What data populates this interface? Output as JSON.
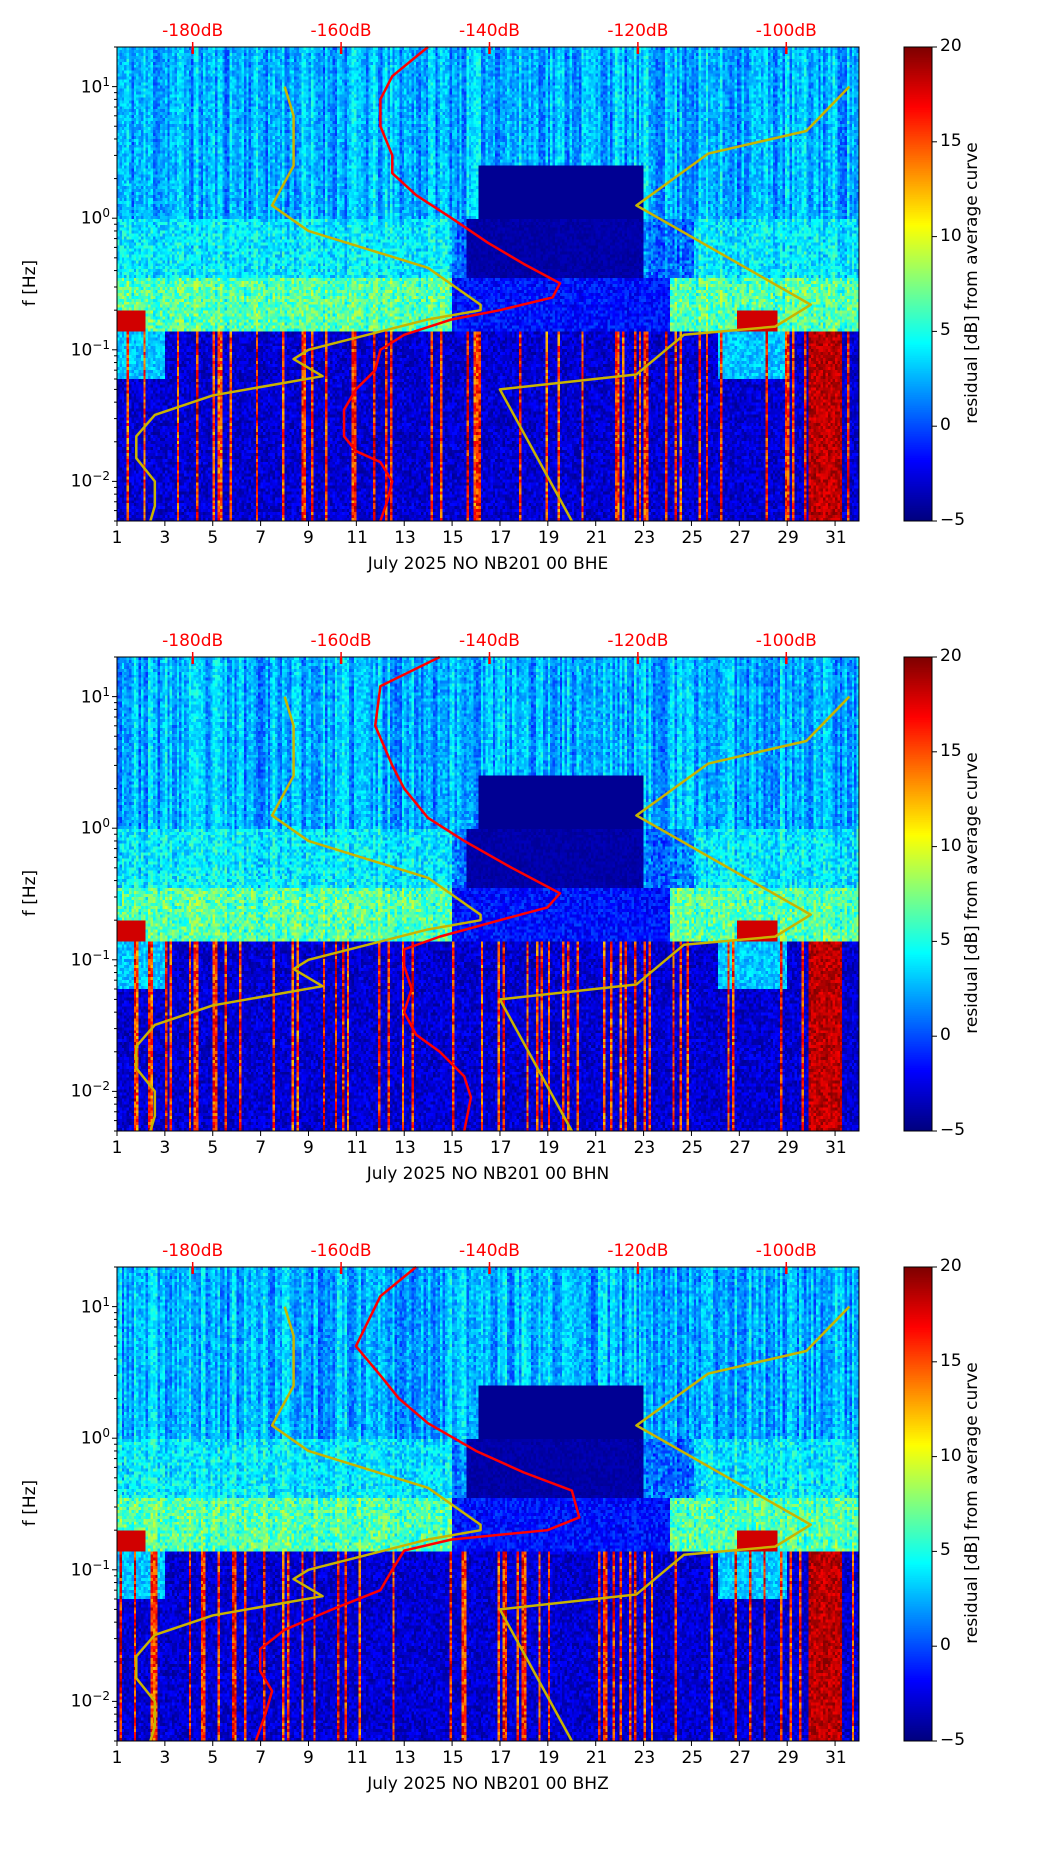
{
  "chart_data": [
    {
      "type": "heatmap",
      "title": "",
      "xlabel": "July 2025 NO NB201 00 BHE",
      "ylabel": "f [Hz]",
      "colorbar_label": "residual [dB] from average curve",
      "xlim": [
        1,
        32
      ],
      "ylim": [
        0.005,
        20
      ],
      "yscale": "log",
      "xticks": [
        "1",
        "3",
        "5",
        "7",
        "9",
        "11",
        "13",
        "15",
        "17",
        "19",
        "21",
        "23",
        "25",
        "27",
        "29",
        "31"
      ],
      "yticks": [
        {
          "v": 10,
          "base": "10",
          "exp": "1"
        },
        {
          "v": 1,
          "base": "10",
          "exp": "0"
        },
        {
          "v": 0.1,
          "base": "10",
          "exp": "−1"
        },
        {
          "v": 0.01,
          "base": "10",
          "exp": "−2"
        }
      ],
      "top_axis": {
        "xlim": [
          -190.2,
          -90.2
        ],
        "ticks": [
          "-180dB",
          "-160dB",
          "-140dB",
          "-120dB",
          "-100dB"
        ],
        "tick_values": [
          -180,
          -160,
          -140,
          -120,
          -100
        ],
        "color": "#ff0000"
      },
      "colorbar": {
        "range": [
          -5,
          20
        ],
        "ticks": [
          "20",
          "15",
          "10",
          "5",
          "0",
          "−5"
        ],
        "tick_values": [
          20,
          15,
          10,
          5,
          0,
          -5
        ],
        "colormap": "jet"
      },
      "seed": 11,
      "red_curve": {
        "color": "#ff0000",
        "points_db_f": [
          [
            -148.3,
            20
          ],
          [
            -153.1,
            12
          ],
          [
            -154.7,
            8
          ],
          [
            -154.7,
            5
          ],
          [
            -153.1,
            3
          ],
          [
            -153.1,
            2.2
          ],
          [
            -149.9,
            1.5
          ],
          [
            -145.1,
            1
          ],
          [
            -140.2,
            0.65
          ],
          [
            -135.4,
            0.45
          ],
          [
            -130.5,
            0.32
          ],
          [
            -131.5,
            0.25
          ],
          [
            -138.6,
            0.2
          ],
          [
            -145.1,
            0.17
          ],
          [
            -151.5,
            0.13
          ],
          [
            -154.7,
            0.1
          ],
          [
            -155.4,
            0.07
          ],
          [
            -158.0,
            0.05
          ],
          [
            -159.6,
            0.035
          ],
          [
            -159.6,
            0.022
          ],
          [
            -158.0,
            0.017
          ],
          [
            -154.7,
            0.014
          ],
          [
            -153.1,
            0.01
          ],
          [
            -153.8,
            0.007
          ],
          [
            -154.7,
            0.005
          ]
        ]
      },
      "noise_models": {
        "color": "#c8b400",
        "low": [
          [
            -167.6,
            10
          ],
          [
            -166.4,
            6
          ],
          [
            -166.4,
            2.5
          ],
          [
            -169.3,
            1.25
          ],
          [
            -164.4,
            0.8
          ],
          [
            -148.3,
            0.42
          ],
          [
            -141.2,
            0.22
          ],
          [
            -141.2,
            0.2
          ],
          [
            -148.3,
            0.17
          ],
          [
            -164.4,
            0.1
          ],
          [
            -166.4,
            0.085
          ],
          [
            -162.5,
            0.063
          ],
          [
            -177.3,
            0.045
          ],
          [
            -185.1,
            0.032
          ],
          [
            -187.6,
            0.022
          ],
          [
            -187.6,
            0.015
          ],
          [
            -185.1,
            0.01
          ],
          [
            -185.1,
            0.0065
          ],
          [
            -185.7,
            0.005
          ]
        ],
        "high": [
          [
            -91.5,
            10
          ],
          [
            -97.3,
            4.6
          ],
          [
            -110.5,
            3.1
          ],
          [
            -120.2,
            1.25
          ],
          [
            -96.7,
            0.22
          ],
          [
            -101.5,
            0.15
          ],
          [
            -113.8,
            0.13
          ],
          [
            -120.2,
            0.065
          ],
          [
            -138.6,
            0.05
          ],
          [
            -128.9,
            0.005
          ]
        ]
      }
    },
    {
      "type": "heatmap",
      "title": "",
      "xlabel": "July 2025 NO NB201 00 BHN",
      "ylabel": "f [Hz]",
      "colorbar_label": "residual [dB] from average curve",
      "xlim": [
        1,
        32
      ],
      "ylim": [
        0.005,
        20
      ],
      "yscale": "log",
      "xticks": [
        "1",
        "3",
        "5",
        "7",
        "9",
        "11",
        "13",
        "15",
        "17",
        "19",
        "21",
        "23",
        "25",
        "27",
        "29",
        "31"
      ],
      "yticks": [
        {
          "v": 10,
          "base": "10",
          "exp": "1"
        },
        {
          "v": 1,
          "base": "10",
          "exp": "0"
        },
        {
          "v": 0.1,
          "base": "10",
          "exp": "−1"
        },
        {
          "v": 0.01,
          "base": "10",
          "exp": "−2"
        }
      ],
      "top_axis": {
        "xlim": [
          -190.2,
          -90.2
        ],
        "ticks": [
          "-180dB",
          "-160dB",
          "-140dB",
          "-120dB",
          "-100dB"
        ],
        "tick_values": [
          -180,
          -160,
          -140,
          -120,
          -100
        ],
        "color": "#ff0000"
      },
      "colorbar": {
        "range": [
          -5,
          20
        ],
        "ticks": [
          "20",
          "15",
          "10",
          "5",
          "0",
          "−5"
        ],
        "tick_values": [
          20,
          15,
          10,
          5,
          0,
          -5
        ],
        "colormap": "jet"
      },
      "seed": 23,
      "red_curve": {
        "color": "#ff0000",
        "points_db_f": [
          [
            -146.7,
            20
          ],
          [
            -154.7,
            12
          ],
          [
            -155.4,
            6
          ],
          [
            -153.1,
            3
          ],
          [
            -151.5,
            2
          ],
          [
            -148.3,
            1.2
          ],
          [
            -143.4,
            0.8
          ],
          [
            -137.0,
            0.5
          ],
          [
            -130.5,
            0.32
          ],
          [
            -132.2,
            0.25
          ],
          [
            -138.6,
            0.2
          ],
          [
            -146.7,
            0.15
          ],
          [
            -151.5,
            0.12
          ],
          [
            -151.5,
            0.09
          ],
          [
            -150.5,
            0.06
          ],
          [
            -151.5,
            0.04
          ],
          [
            -149.9,
            0.027
          ],
          [
            -146.7,
            0.02
          ],
          [
            -143.4,
            0.013
          ],
          [
            -142.5,
            0.009
          ],
          [
            -143.4,
            0.005
          ]
        ]
      },
      "noise_models": {
        "color": "#c8b400",
        "low": [
          [
            -167.6,
            10
          ],
          [
            -166.4,
            6
          ],
          [
            -166.4,
            2.5
          ],
          [
            -169.3,
            1.25
          ],
          [
            -164.4,
            0.8
          ],
          [
            -148.3,
            0.42
          ],
          [
            -141.2,
            0.22
          ],
          [
            -141.2,
            0.2
          ],
          [
            -148.3,
            0.17
          ],
          [
            -164.4,
            0.1
          ],
          [
            -166.4,
            0.085
          ],
          [
            -162.5,
            0.063
          ],
          [
            -177.3,
            0.045
          ],
          [
            -185.1,
            0.032
          ],
          [
            -187.6,
            0.022
          ],
          [
            -187.6,
            0.015
          ],
          [
            -185.1,
            0.01
          ],
          [
            -185.1,
            0.0065
          ],
          [
            -185.7,
            0.005
          ]
        ],
        "high": [
          [
            -91.5,
            10
          ],
          [
            -97.3,
            4.6
          ],
          [
            -110.5,
            3.1
          ],
          [
            -120.2,
            1.25
          ],
          [
            -96.7,
            0.22
          ],
          [
            -101.5,
            0.15
          ],
          [
            -113.8,
            0.13
          ],
          [
            -120.2,
            0.065
          ],
          [
            -138.6,
            0.05
          ],
          [
            -128.9,
            0.005
          ]
        ]
      }
    },
    {
      "type": "heatmap",
      "title": "",
      "xlabel": "July 2025 NO NB201 00 BHZ",
      "ylabel": "f [Hz]",
      "colorbar_label": "residual [dB] from average curve",
      "xlim": [
        1,
        32
      ],
      "ylim": [
        0.005,
        20
      ],
      "yscale": "log",
      "xticks": [
        "1",
        "3",
        "5",
        "7",
        "9",
        "11",
        "13",
        "15",
        "17",
        "19",
        "21",
        "23",
        "25",
        "27",
        "29",
        "31"
      ],
      "yticks": [
        {
          "v": 10,
          "base": "10",
          "exp": "1"
        },
        {
          "v": 1,
          "base": "10",
          "exp": "0"
        },
        {
          "v": 0.1,
          "base": "10",
          "exp": "−1"
        },
        {
          "v": 0.01,
          "base": "10",
          "exp": "−2"
        }
      ],
      "top_axis": {
        "xlim": [
          -190.2,
          -90.2
        ],
        "ticks": [
          "-180dB",
          "-160dB",
          "-140dB",
          "-120dB",
          "-100dB"
        ],
        "tick_values": [
          -180,
          -160,
          -140,
          -120,
          -100
        ],
        "color": "#ff0000"
      },
      "colorbar": {
        "range": [
          -5,
          20
        ],
        "ticks": [
          "20",
          "15",
          "10",
          "5",
          "0",
          "−5"
        ],
        "tick_values": [
          20,
          15,
          10,
          5,
          0,
          -5
        ],
        "colormap": "jet"
      },
      "seed": 37,
      "red_curve": {
        "color": "#ff0000",
        "points_db_f": [
          [
            -149.9,
            20
          ],
          [
            -154.7,
            12
          ],
          [
            -158.0,
            5
          ],
          [
            -154.7,
            3
          ],
          [
            -152.2,
            2
          ],
          [
            -148.3,
            1.3
          ],
          [
            -141.8,
            0.8
          ],
          [
            -135.4,
            0.55
          ],
          [
            -128.9,
            0.4
          ],
          [
            -127.9,
            0.25
          ],
          [
            -132.2,
            0.2
          ],
          [
            -145.1,
            0.17
          ],
          [
            -151.5,
            0.14
          ],
          [
            -153.1,
            0.1
          ],
          [
            -154.7,
            0.07
          ],
          [
            -161.2,
            0.05
          ],
          [
            -167.6,
            0.035
          ],
          [
            -170.9,
            0.025
          ],
          [
            -170.9,
            0.017
          ],
          [
            -169.3,
            0.012
          ],
          [
            -170.2,
            0.008
          ],
          [
            -171.5,
            0.005
          ]
        ]
      },
      "noise_models": {
        "color": "#c8b400",
        "low": [
          [
            -167.6,
            10
          ],
          [
            -166.4,
            6
          ],
          [
            -166.4,
            2.5
          ],
          [
            -169.3,
            1.25
          ],
          [
            -164.4,
            0.8
          ],
          [
            -148.3,
            0.42
          ],
          [
            -141.2,
            0.22
          ],
          [
            -141.2,
            0.2
          ],
          [
            -148.3,
            0.17
          ],
          [
            -164.4,
            0.1
          ],
          [
            -166.4,
            0.085
          ],
          [
            -162.5,
            0.063
          ],
          [
            -177.3,
            0.045
          ],
          [
            -185.1,
            0.032
          ],
          [
            -187.6,
            0.022
          ],
          [
            -187.6,
            0.015
          ],
          [
            -185.1,
            0.01
          ],
          [
            -185.1,
            0.0065
          ],
          [
            -185.7,
            0.005
          ]
        ],
        "high": [
          [
            -91.5,
            10
          ],
          [
            -97.3,
            4.6
          ],
          [
            -110.5,
            3.1
          ],
          [
            -120.2,
            1.25
          ],
          [
            -96.7,
            0.22
          ],
          [
            -101.5,
            0.15
          ],
          [
            -113.8,
            0.13
          ],
          [
            -120.2,
            0.065
          ],
          [
            -138.6,
            0.05
          ],
          [
            -128.9,
            0.005
          ]
        ]
      }
    }
  ]
}
